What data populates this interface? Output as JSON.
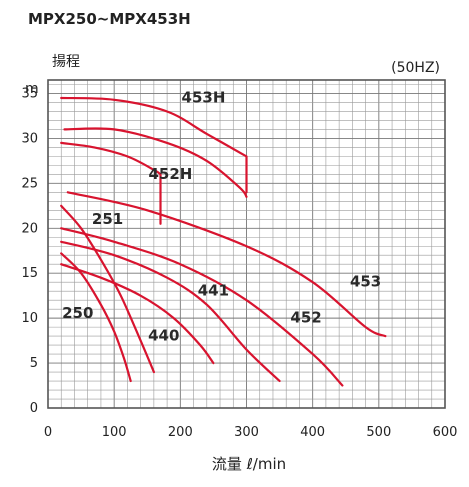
{
  "chart_data": {
    "type": "line",
    "title": "MPX250~MPX453H",
    "ylabel": "揚程",
    "yunit": "m",
    "frequency_note": "(50HZ)",
    "xlabel": "流量 ℓ/min",
    "xlim": [
      0,
      600
    ],
    "ylim": [
      0,
      38
    ],
    "x_ticks": [
      "0",
      "100",
      "200",
      "300",
      "400",
      "500",
      "600"
    ],
    "y_ticks": [
      "0",
      "5",
      "10",
      "15",
      "20",
      "25",
      "30",
      "35"
    ],
    "grid": true,
    "series": [
      {
        "name": "250",
        "x": [
          20,
          50,
          80,
          100,
          115,
          125
        ],
        "y": [
          17.2,
          15,
          11.5,
          8.5,
          5.5,
          3
        ]
      },
      {
        "name": "251",
        "x": [
          20,
          50,
          80,
          110,
          140,
          160
        ],
        "y": [
          22.5,
          20,
          16.5,
          12.5,
          7.5,
          4
        ]
      },
      {
        "name": "440",
        "x": [
          20,
          80,
          140,
          190,
          230,
          250
        ],
        "y": [
          16,
          14.5,
          12.5,
          10,
          7,
          5
        ]
      },
      {
        "name": "441",
        "x": [
          20,
          100,
          180,
          240,
          300,
          350
        ],
        "y": [
          18.5,
          17,
          14.5,
          11.5,
          6.5,
          3
        ]
      },
      {
        "name": "452",
        "x": [
          20,
          100,
          200,
          300,
          400,
          445
        ],
        "y": [
          20,
          18.5,
          16,
          12,
          6,
          2.5
        ]
      },
      {
        "name": "453",
        "x": [
          30,
          150,
          300,
          400,
          480,
          510
        ],
        "y": [
          24,
          22,
          18,
          14,
          9,
          8
        ]
      },
      {
        "name": "452H",
        "x": [
          20,
          70,
          120,
          160,
          170,
          170
        ],
        "y": [
          29.5,
          29,
          28,
          26.5,
          26,
          20.5
        ]
      },
      {
        "name": "453H",
        "x": [
          20,
          100,
          180,
          240,
          300,
          300
        ],
        "y": [
          34.5,
          34.3,
          33,
          30.5,
          28,
          24
        ]
      },
      {
        "name": "453H",
        "x": [
          25,
          100,
          180,
          240,
          290,
          300
        ],
        "y": [
          31,
          31,
          29.5,
          27.5,
          24.5,
          23.5
        ]
      }
    ],
    "label_positions": [
      {
        "series": "250",
        "x": 45,
        "y": 10
      },
      {
        "series": "251",
        "x": 90,
        "y": 20.5
      },
      {
        "series": "440",
        "x": 175,
        "y": 7.5
      },
      {
        "series": "441",
        "x": 250,
        "y": 12.5
      },
      {
        "series": "452",
        "x": 390,
        "y": 9.5
      },
      {
        "series": "453",
        "x": 480,
        "y": 13.5
      },
      {
        "series": "452H",
        "x": 185,
        "y": 25.5
      },
      {
        "series": "453H",
        "x": 235,
        "y": 34
      }
    ]
  }
}
